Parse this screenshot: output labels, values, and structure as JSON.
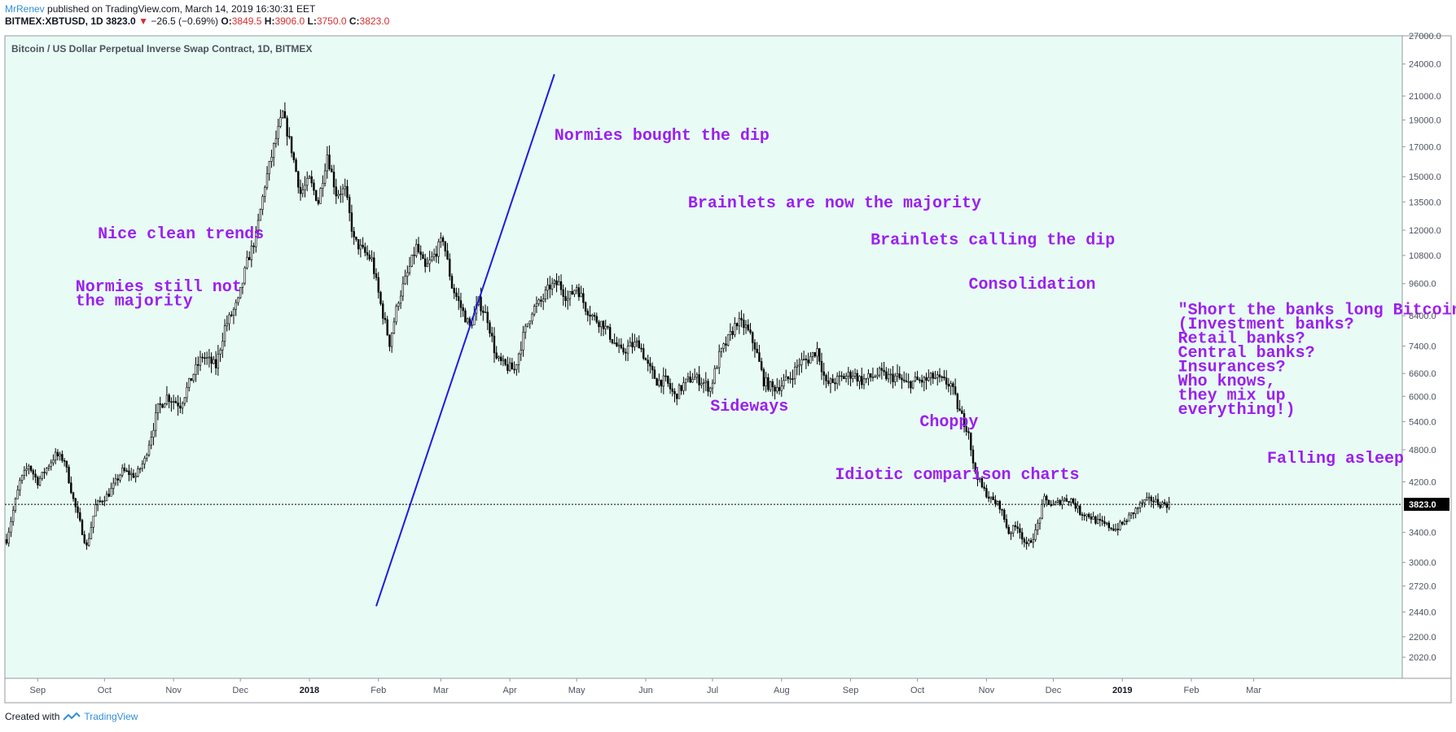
{
  "header": {
    "author": "MrRenev",
    "published": "published on TradingView.com, March 14, 2019 16:30:31 EET",
    "symbol": "BITMEX:XBTUSD, 1D",
    "last": "3823.0",
    "change": "−26.5 (−0.69%)",
    "open_label": "O:",
    "open": "3849.5",
    "high_label": "H:",
    "high": "3906.0",
    "low_label": "L:",
    "low": "3750.0",
    "close_label": "C:",
    "close": "3823.0"
  },
  "footer": {
    "created_with": "Created with",
    "brand": "TradingView"
  },
  "colors": {
    "background": "#e8fbf4",
    "annotation": "#9b1ff0",
    "trendline": "#1c1ce0",
    "candle": "#000000"
  },
  "chart_data": {
    "type": "candlestick",
    "title": "Bitcoin / US Dollar Perpetual Inverse Swap Contract, 1D, BITMEX",
    "y_scale": "log",
    "ylim": [
      1850,
      27000
    ],
    "current_price_label": "3823.0",
    "current_price": 3823,
    "y_ticks": [
      "27000.0",
      "24000.0",
      "21000.0",
      "19000.0",
      "17000.0",
      "15000.0",
      "13500.0",
      "12000.0",
      "10800.0",
      "9600.0",
      "8400.0",
      "7400.0",
      "6600.0",
      "6000.0",
      "5400.0",
      "4800.0",
      "4200.0",
      "3400.0",
      "3000.0",
      "2720.0",
      "2440.0",
      "2200.0",
      "2020.0"
    ],
    "x_ticks": [
      {
        "label": "Sep",
        "bold": false,
        "day": 14
      },
      {
        "label": "Oct",
        "bold": false,
        "day": 44
      },
      {
        "label": "Nov",
        "bold": false,
        "day": 75
      },
      {
        "label": "Dec",
        "bold": false,
        "day": 105
      },
      {
        "label": "2018",
        "bold": true,
        "day": 136
      },
      {
        "label": "Feb",
        "bold": false,
        "day": 167
      },
      {
        "label": "Mar",
        "bold": false,
        "day": 195
      },
      {
        "label": "Apr",
        "bold": false,
        "day": 226
      },
      {
        "label": "May",
        "bold": false,
        "day": 256
      },
      {
        "label": "Jun",
        "bold": false,
        "day": 287
      },
      {
        "label": "Jul",
        "bold": false,
        "day": 317
      },
      {
        "label": "Aug",
        "bold": false,
        "day": 348
      },
      {
        "label": "Sep",
        "bold": false,
        "day": 379
      },
      {
        "label": "Oct",
        "bold": false,
        "day": 409
      },
      {
        "label": "Nov",
        "bold": false,
        "day": 440
      },
      {
        "label": "Dec",
        "bold": false,
        "day": 470
      },
      {
        "label": "2019",
        "bold": true,
        "day": 501
      },
      {
        "label": "Feb",
        "bold": false,
        "day": 532
      },
      {
        "label": "Mar",
        "bold": false,
        "day": 560
      }
    ],
    "price_path": [
      [
        0,
        3300
      ],
      [
        6,
        4200
      ],
      [
        10,
        4500
      ],
      [
        14,
        4200
      ],
      [
        22,
        4700
      ],
      [
        26,
        4600
      ],
      [
        30,
        3900
      ],
      [
        36,
        3200
      ],
      [
        40,
        3800
      ],
      [
        46,
        4000
      ],
      [
        52,
        4400
      ],
      [
        58,
        4300
      ],
      [
        62,
        4600
      ],
      [
        68,
        5700
      ],
      [
        72,
        6000
      ],
      [
        78,
        5800
      ],
      [
        84,
        6600
      ],
      [
        88,
        7100
      ],
      [
        94,
        6800
      ],
      [
        98,
        8000
      ],
      [
        104,
        8900
      ],
      [
        108,
        10500
      ],
      [
        112,
        11700
      ],
      [
        116,
        14500
      ],
      [
        120,
        17000
      ],
      [
        124,
        19500
      ],
      [
        128,
        16800
      ],
      [
        132,
        14000
      ],
      [
        136,
        14800
      ],
      [
        140,
        13500
      ],
      [
        144,
        16500
      ],
      [
        148,
        14000
      ],
      [
        152,
        14200
      ],
      [
        156,
        11500
      ],
      [
        160,
        11000
      ],
      [
        164,
        10600
      ],
      [
        168,
        8800
      ],
      [
        172,
        7500
      ],
      [
        176,
        9000
      ],
      [
        180,
        10000
      ],
      [
        184,
        11200
      ],
      [
        188,
        10200
      ],
      [
        192,
        10800
      ],
      [
        196,
        11600
      ],
      [
        200,
        9500
      ],
      [
        204,
        8700
      ],
      [
        208,
        8000
      ],
      [
        212,
        8900
      ],
      [
        216,
        8300
      ],
      [
        220,
        7000
      ],
      [
        224,
        6800
      ],
      [
        228,
        6700
      ],
      [
        232,
        7700
      ],
      [
        236,
        8600
      ],
      [
        240,
        8900
      ],
      [
        244,
        9500
      ],
      [
        248,
        9600
      ],
      [
        252,
        9000
      ],
      [
        256,
        9500
      ],
      [
        260,
        8700
      ],
      [
        264,
        8300
      ],
      [
        268,
        8100
      ],
      [
        272,
        7600
      ],
      [
        276,
        7200
      ],
      [
        280,
        7400
      ],
      [
        284,
        7500
      ],
      [
        288,
        6800
      ],
      [
        292,
        6400
      ],
      [
        296,
        6400
      ],
      [
        300,
        6000
      ],
      [
        304,
        6300
      ],
      [
        308,
        6500
      ],
      [
        312,
        6400
      ],
      [
        316,
        6200
      ],
      [
        320,
        7100
      ],
      [
        324,
        7600
      ],
      [
        328,
        8200
      ],
      [
        332,
        8000
      ],
      [
        336,
        7400
      ],
      [
        340,
        6400
      ],
      [
        344,
        6200
      ],
      [
        348,
        6300
      ],
      [
        352,
        6500
      ],
      [
        356,
        6900
      ],
      [
        360,
        7000
      ],
      [
        364,
        7300
      ],
      [
        368,
        6300
      ],
      [
        372,
        6400
      ],
      [
        376,
        6500
      ],
      [
        380,
        6600
      ],
      [
        384,
        6400
      ],
      [
        388,
        6500
      ],
      [
        392,
        6600
      ],
      [
        396,
        6500
      ],
      [
        400,
        6500
      ],
      [
        404,
        6300
      ],
      [
        408,
        6400
      ],
      [
        412,
        6400
      ],
      [
        416,
        6500
      ],
      [
        420,
        6400
      ],
      [
        424,
        6300
      ],
      [
        428,
        5600
      ],
      [
        432,
        5200
      ],
      [
        434,
        4500
      ],
      [
        438,
        4100
      ],
      [
        442,
        3900
      ],
      [
        446,
        3800
      ],
      [
        450,
        3400
      ],
      [
        454,
        3500
      ],
      [
        458,
        3200
      ],
      [
        462,
        3400
      ],
      [
        466,
        3900
      ],
      [
        470,
        3800
      ],
      [
        474,
        3900
      ],
      [
        478,
        3900
      ],
      [
        482,
        3700
      ],
      [
        486,
        3650
      ],
      [
        490,
        3550
      ],
      [
        494,
        3500
      ],
      [
        498,
        3450
      ],
      [
        502,
        3550
      ],
      [
        506,
        3700
      ],
      [
        510,
        3850
      ],
      [
        514,
        3900
      ],
      [
        518,
        3830
      ],
      [
        522,
        3823
      ]
    ],
    "trendline": {
      "from": {
        "day": 166,
        "price": 2500
      },
      "to": {
        "day": 246,
        "price": 23000
      }
    },
    "annotations": [
      {
        "lines": [
          "Normies bought the dip"
        ],
        "day": 246,
        "price": 17500
      },
      {
        "lines": [
          "Brainlets are now the majority"
        ],
        "day": 306,
        "price": 13200
      },
      {
        "lines": [
          "Nice clean trends"
        ],
        "day": 41,
        "price": 11600
      },
      {
        "lines": [
          "Brainlets calling the dip"
        ],
        "day": 388,
        "price": 11300
      },
      {
        "lines": [
          "Consolidation"
        ],
        "day": 432,
        "price": 9400
      },
      {
        "lines": [
          "Normies still not",
          " the majority"
        ],
        "day": 31,
        "price": 9300
      },
      {
        "lines": [
          "\"Short the banks long Bitcoin\"",
          "(Investment banks?",
          " Retail banks?",
          " Central banks?",
          " Insurances?",
          " Who knows,",
          " they mix up",
          " everything!)"
        ],
        "day": 526,
        "price": 8450
      },
      {
        "lines": [
          "Sideways"
        ],
        "day": 316,
        "price": 5650
      },
      {
        "lines": [
          "Choppy"
        ],
        "day": 410,
        "price": 5300
      },
      {
        "lines": [
          "Falling asleep"
        ],
        "day": 566,
        "price": 4550
      },
      {
        "lines": [
          "Idiotic comparison charts"
        ],
        "day": 372,
        "price": 4250
      }
    ]
  }
}
